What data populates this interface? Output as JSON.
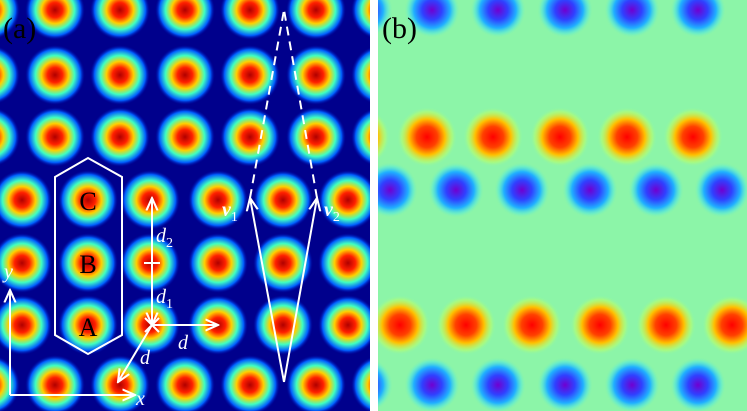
{
  "panels": [
    {
      "label": "(a)"
    },
    {
      "label": "(b)"
    }
  ],
  "sites": [
    "C",
    "B",
    "A"
  ],
  "annotations": {
    "d2": {
      "symbol": "d",
      "sub": "2"
    },
    "d1": {
      "symbol": "d",
      "sub": "1"
    },
    "d_horizontal": "d",
    "d_diagonal": "d",
    "v1": {
      "symbol": "v",
      "sub": "1"
    },
    "v2": {
      "symbol": "v",
      "sub": "2"
    },
    "x_axis": "x",
    "y_axis": "y"
  }
}
